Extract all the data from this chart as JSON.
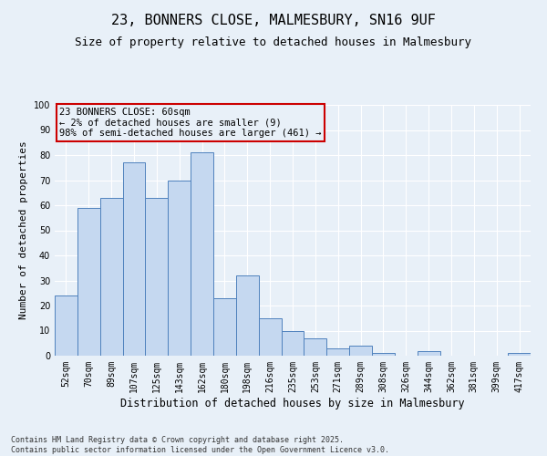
{
  "title_line1": "23, BONNERS CLOSE, MALMESBURY, SN16 9UF",
  "title_line2": "Size of property relative to detached houses in Malmesbury",
  "xlabel": "Distribution of detached houses by size in Malmesbury",
  "ylabel": "Number of detached properties",
  "bar_labels": [
    "52sqm",
    "70sqm",
    "89sqm",
    "107sqm",
    "125sqm",
    "143sqm",
    "162sqm",
    "180sqm",
    "198sqm",
    "216sqm",
    "235sqm",
    "253sqm",
    "271sqm",
    "289sqm",
    "308sqm",
    "326sqm",
    "344sqm",
    "362sqm",
    "381sqm",
    "399sqm",
    "417sqm"
  ],
  "bar_values": [
    24,
    59,
    63,
    77,
    63,
    70,
    81,
    23,
    32,
    15,
    10,
    7,
    3,
    4,
    1,
    0,
    2,
    0,
    0,
    0,
    1
  ],
  "bar_color": "#c5d8f0",
  "bar_edge_color": "#4f81bd",
  "bg_color": "#e8f0f8",
  "annotation_text": "23 BONNERS CLOSE: 60sqm\n← 2% of detached houses are smaller (9)\n98% of semi-detached houses are larger (461) →",
  "annotation_box_edge": "#cc0000",
  "ylim": [
    0,
    100
  ],
  "yticks": [
    0,
    10,
    20,
    30,
    40,
    50,
    60,
    70,
    80,
    90,
    100
  ],
  "grid_color": "#ffffff",
  "footer_line1": "Contains HM Land Registry data © Crown copyright and database right 2025.",
  "footer_line2": "Contains public sector information licensed under the Open Government Licence v3.0.",
  "title_fontsize": 11,
  "subtitle_fontsize": 9,
  "tick_fontsize": 7,
  "ylabel_fontsize": 8,
  "xlabel_fontsize": 8.5
}
